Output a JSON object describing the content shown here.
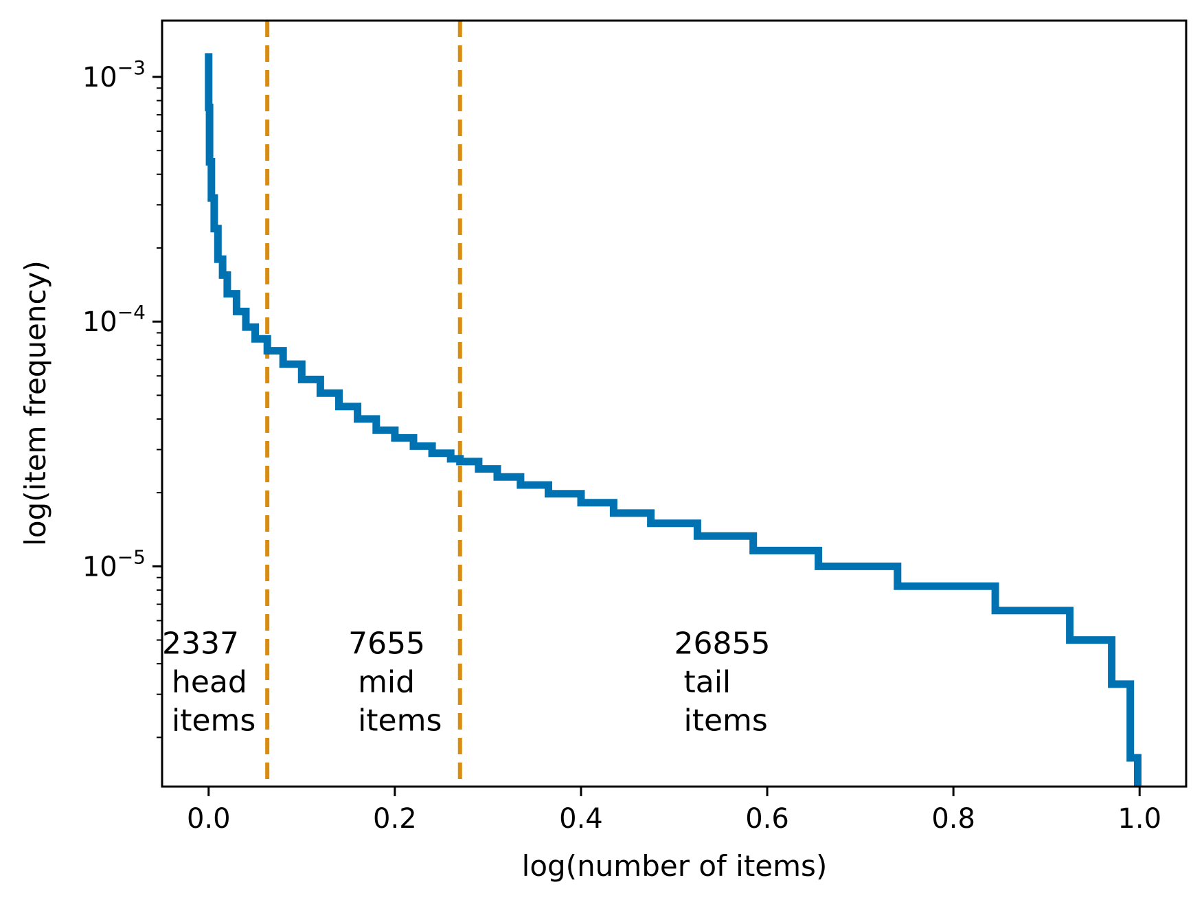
{
  "chart_data": {
    "type": "line",
    "title": "",
    "xlabel": "log(number of items)",
    "ylabel": "log(item frequency)",
    "xlim": [
      -0.05,
      1.05
    ],
    "ylim_log10": [
      -5.9,
      -2.77
    ],
    "y_scale": "log",
    "x_ticks": [
      {
        "value": 0.0,
        "label": "0.0"
      },
      {
        "value": 0.2,
        "label": "0.2"
      },
      {
        "value": 0.4,
        "label": "0.4"
      },
      {
        "value": 0.6,
        "label": "0.6"
      },
      {
        "value": 0.8,
        "label": "0.8"
      },
      {
        "value": 1.0,
        "label": "1.0"
      }
    ],
    "y_ticks": [
      {
        "value": 0.001,
        "base": "10",
        "exp": "−3"
      },
      {
        "value": 0.0001,
        "base": "10",
        "exp": "−4"
      },
      {
        "value": 1e-05,
        "base": "10",
        "exp": "−5"
      }
    ],
    "colors": {
      "series": "#0072B2",
      "divider": "#D98C10",
      "axis": "#000000"
    },
    "series": [
      {
        "x": [
          0.0,
          0.0,
          0.001,
          0.003,
          0.006,
          0.01,
          0.015,
          0.02,
          0.03,
          0.04,
          0.05,
          0.063,
          0.08,
          0.1,
          0.12,
          0.14,
          0.16,
          0.18,
          0.2,
          0.22,
          0.24,
          0.26,
          0.27,
          0.29,
          0.31,
          0.335,
          0.365,
          0.4,
          0.435,
          0.475,
          0.525,
          0.585,
          0.655,
          0.74,
          0.845,
          0.925,
          0.97,
          0.99,
          0.998,
          0.998
        ],
        "y": [
          0.00125,
          0.00075,
          0.00045,
          0.00032,
          0.00024,
          0.00018,
          0.000155,
          0.00013,
          0.00011,
          9.5e-05,
          8.5e-05,
          7.6e-05,
          6.7e-05,
          5.8e-05,
          5.1e-05,
          4.5e-05,
          4e-05,
          3.6e-05,
          3.35e-05,
          3.1e-05,
          2.9e-05,
          2.75e-05,
          2.68e-05,
          2.5e-05,
          2.32e-05,
          2.15e-05,
          1.98e-05,
          1.82e-05,
          1.65e-05,
          1.5e-05,
          1.33e-05,
          1.16e-05,
          1e-05,
          8.3e-06,
          6.6e-06,
          5e-06,
          3.3e-06,
          1.65e-06,
          1.65e-06,
          1.2e-06
        ]
      }
    ],
    "vlines": [
      0.063,
      0.27
    ],
    "annotations": [
      {
        "x": -0.05,
        "y": 4.4e-06,
        "lines": [
          "2337",
          " head",
          " items"
        ]
      },
      {
        "x": 0.15,
        "y": 4.4e-06,
        "lines": [
          "7655",
          " mid",
          " items"
        ]
      },
      {
        "x": 0.5,
        "y": 4.4e-06,
        "lines": [
          "26855",
          " tail",
          " items"
        ]
      }
    ]
  }
}
